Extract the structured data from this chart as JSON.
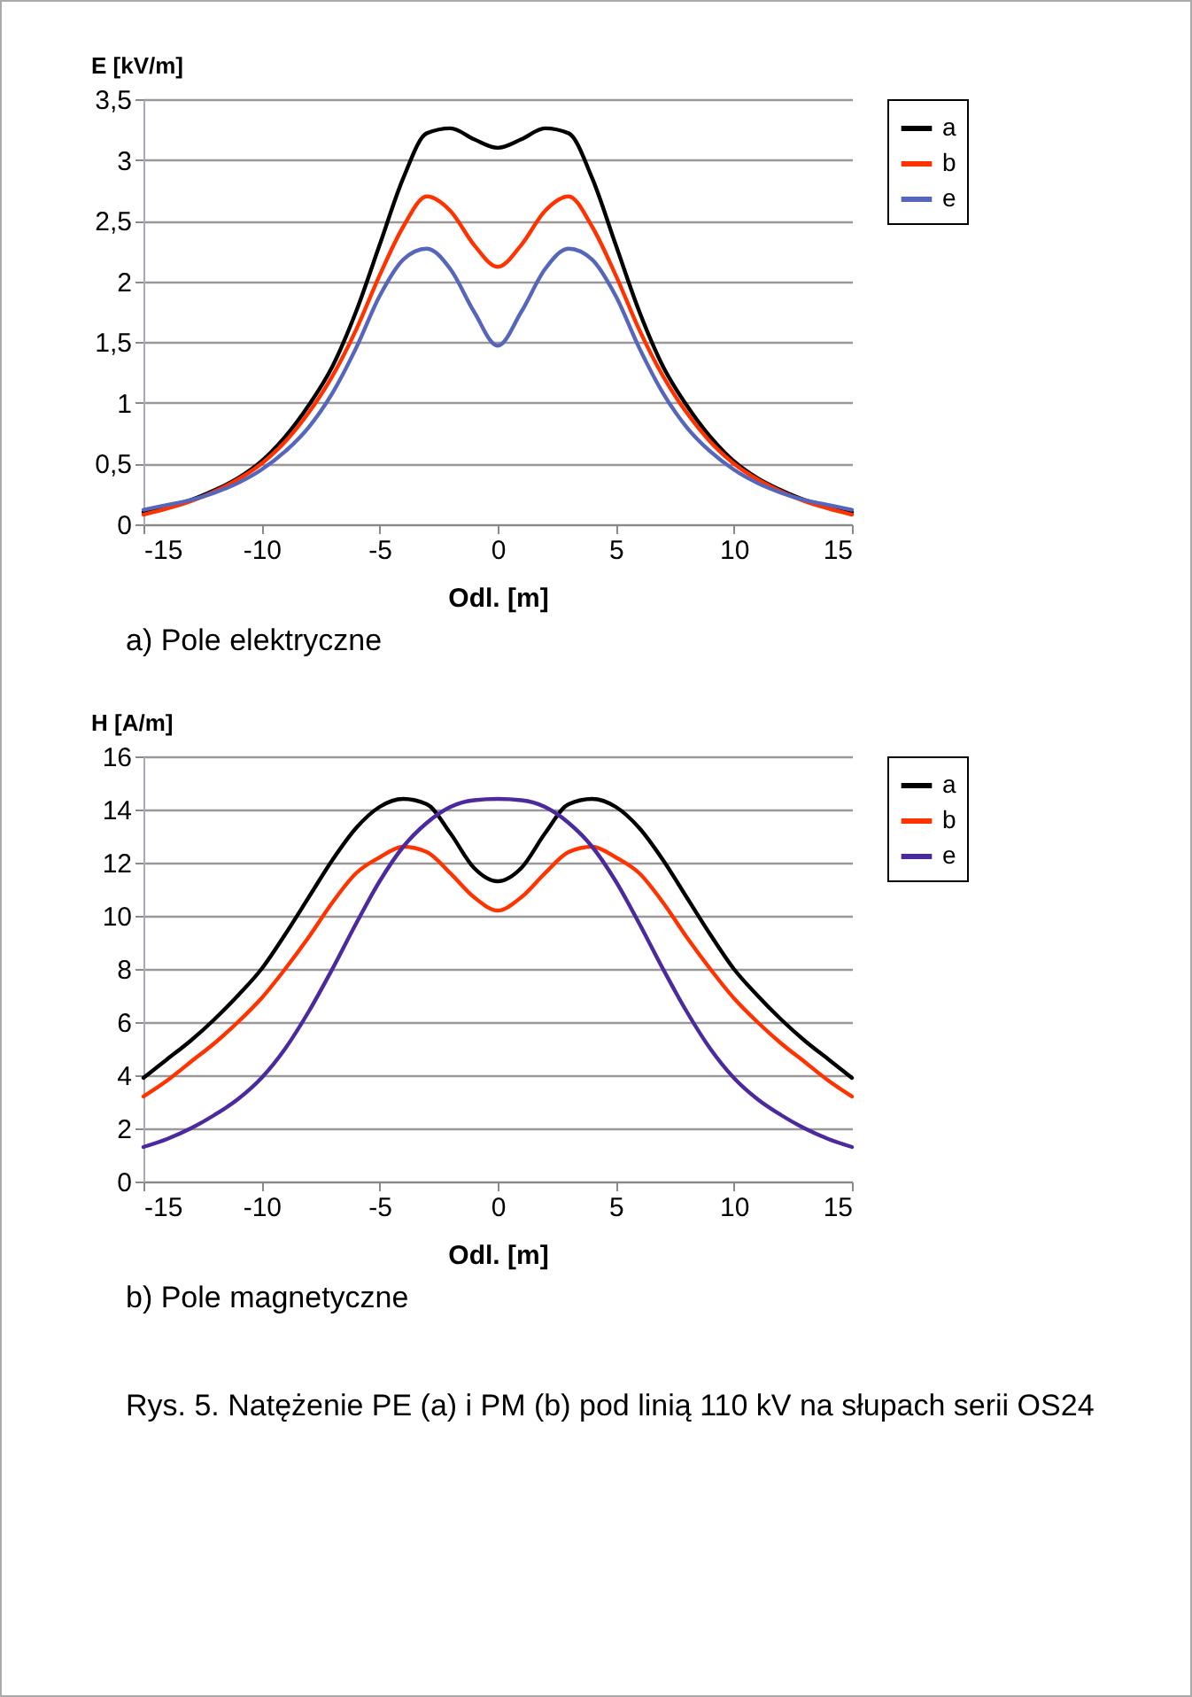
{
  "chart_data": [
    {
      "type": "line",
      "ylabel": "E [kV/m]",
      "xlabel": "Odl. [m]",
      "annotations": [
        "a) Pole elektryczne"
      ],
      "x": [
        -15,
        -14,
        -13,
        -12,
        -11,
        -10,
        -9,
        -8,
        -7,
        -6,
        -5,
        -4,
        -3,
        -2,
        -1,
        0,
        1,
        2,
        3,
        4,
        5,
        6,
        7,
        8,
        9,
        10,
        11,
        12,
        13,
        14,
        15
      ],
      "series": [
        {
          "name": "a",
          "color": "#000000",
          "values": [
            0.1,
            0.15,
            0.2,
            0.28,
            0.38,
            0.52,
            0.72,
            0.98,
            1.3,
            1.75,
            2.3,
            2.85,
            3.22,
            3.26,
            3.17,
            3.1,
            3.17,
            3.26,
            3.22,
            2.85,
            2.3,
            1.75,
            1.3,
            0.98,
            0.72,
            0.52,
            0.38,
            0.28,
            0.2,
            0.15,
            0.1
          ]
        },
        {
          "name": "b",
          "color": "#ff3300",
          "values": [
            0.08,
            0.13,
            0.19,
            0.27,
            0.37,
            0.5,
            0.68,
            0.92,
            1.22,
            1.6,
            2.05,
            2.45,
            2.7,
            2.58,
            2.3,
            2.12,
            2.3,
            2.58,
            2.7,
            2.45,
            2.05,
            1.6,
            1.22,
            0.92,
            0.68,
            0.5,
            0.37,
            0.27,
            0.19,
            0.13,
            0.08
          ]
        },
        {
          "name": "e",
          "color": "#5566bb",
          "values": [
            0.12,
            0.16,
            0.2,
            0.26,
            0.34,
            0.45,
            0.6,
            0.8,
            1.08,
            1.45,
            1.88,
            2.18,
            2.27,
            2.1,
            1.75,
            1.47,
            1.75,
            2.1,
            2.27,
            2.18,
            1.88,
            1.45,
            1.08,
            0.8,
            0.6,
            0.45,
            0.34,
            0.26,
            0.2,
            0.16,
            0.12
          ]
        }
      ],
      "xlim": [
        -15,
        15
      ],
      "xticks": [
        -15,
        -10,
        -5,
        0,
        5,
        10,
        15
      ],
      "ylim": [
        0,
        3.5
      ],
      "yticks": [
        0,
        {
          "value": 0.5,
          "label": "0,5"
        },
        1,
        {
          "value": 1.5,
          "label": "1,5"
        },
        2,
        {
          "value": 2.5,
          "label": "2,5"
        },
        3,
        {
          "value": 3.5,
          "label": "3,5"
        }
      ],
      "grid": "y",
      "legend": "right",
      "marker": "none",
      "line_style": "solid"
    },
    {
      "type": "line",
      "ylabel": "H [A/m]",
      "xlabel": "Odl. [m]",
      "annotations": [
        "b) Pole magnetyczne",
        "Rys. 5. Natężenie PE (a) i PM (b) pod linią 110 kV na słupach serii OS24"
      ],
      "x": [
        -15,
        -14,
        -13,
        -12,
        -11,
        -10,
        -9,
        -8,
        -7,
        -6,
        -5,
        -4,
        -3,
        -2,
        -1,
        0,
        1,
        2,
        3,
        4,
        5,
        6,
        7,
        8,
        9,
        10,
        11,
        12,
        13,
        14,
        15
      ],
      "series": [
        {
          "name": "a",
          "color": "#000000",
          "values": [
            3.9,
            4.6,
            5.3,
            6.1,
            7.0,
            8.0,
            9.3,
            10.7,
            12.1,
            13.3,
            14.1,
            14.4,
            14.2,
            13.1,
            11.8,
            11.3,
            11.8,
            13.1,
            14.2,
            14.4,
            14.1,
            13.3,
            12.1,
            10.7,
            9.3,
            8.0,
            7.0,
            6.1,
            5.3,
            4.6,
            3.9
          ]
        },
        {
          "name": "b",
          "color": "#ff3300",
          "values": [
            3.2,
            3.8,
            4.5,
            5.2,
            6.0,
            6.9,
            8.0,
            9.2,
            10.5,
            11.6,
            12.2,
            12.6,
            12.4,
            11.6,
            10.7,
            10.2,
            10.7,
            11.6,
            12.4,
            12.6,
            12.2,
            11.6,
            10.5,
            9.2,
            8.0,
            6.9,
            6.0,
            5.2,
            4.5,
            3.8,
            3.2
          ]
        },
        {
          "name": "e",
          "color": "#4b2a9e",
          "values": [
            1.3,
            1.6,
            2.0,
            2.5,
            3.1,
            3.9,
            5.0,
            6.4,
            8.0,
            9.7,
            11.3,
            12.6,
            13.5,
            14.1,
            14.35,
            14.4,
            14.35,
            14.1,
            13.5,
            12.6,
            11.3,
            9.7,
            8.0,
            6.4,
            5.0,
            3.9,
            3.1,
            2.5,
            2.0,
            1.6,
            1.3
          ]
        }
      ],
      "xlim": [
        -15,
        15
      ],
      "xticks": [
        -15,
        -10,
        -5,
        0,
        5,
        10,
        15
      ],
      "ylim": [
        0,
        16
      ],
      "yticks": [
        0,
        2,
        4,
        6,
        8,
        10,
        12,
        14,
        16
      ],
      "grid": "y",
      "legend": "right",
      "marker": "none",
      "line_style": "solid"
    }
  ]
}
